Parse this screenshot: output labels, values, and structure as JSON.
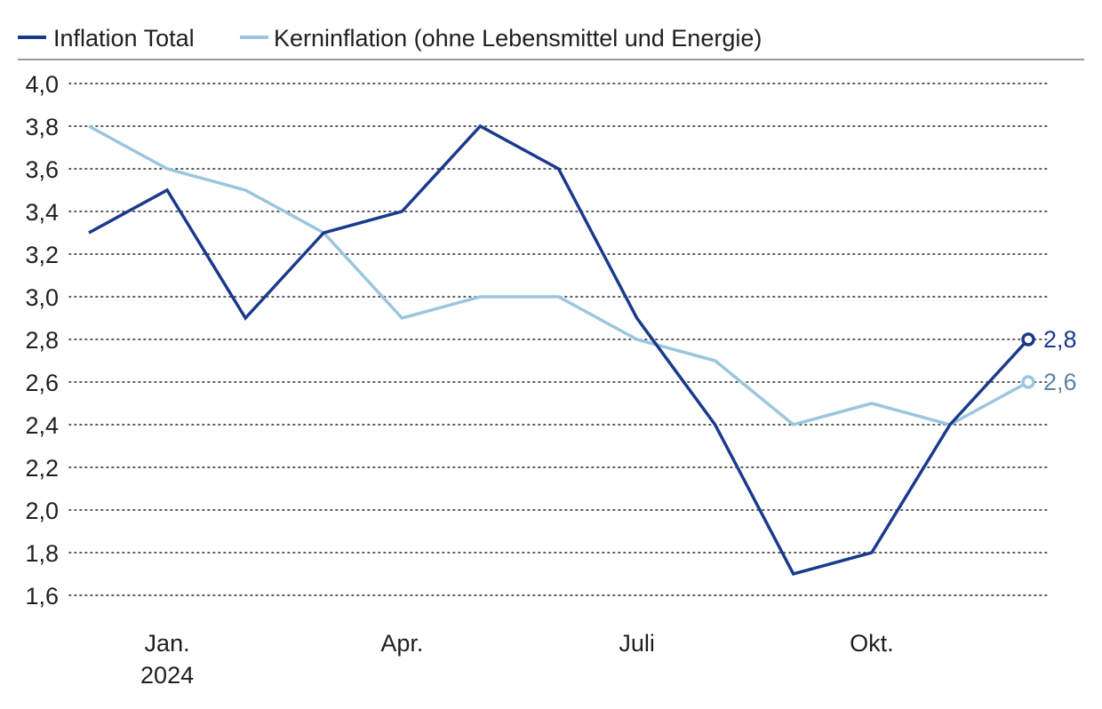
{
  "colors": {
    "series_total": "#1a3a8c",
    "series_core": "#9cc6de",
    "label_total": "#1a3a8c",
    "label_core": "#5b84a8",
    "grid": "#222222",
    "rule": "#9a9a9a",
    "text": "#1f1f1f"
  },
  "chart_data": {
    "type": "line",
    "x": [
      "2023-12",
      "2024-01",
      "2024-02",
      "2024-03",
      "2024-04",
      "2024-05",
      "2024-06",
      "2024-07",
      "2024-08",
      "2024-09",
      "2024-10",
      "2024-11",
      "2024-12"
    ],
    "x_tick_labels": [
      {
        "x": "2024-01",
        "lines": [
          "Jan.",
          "2024"
        ]
      },
      {
        "x": "2024-04",
        "lines": [
          "Apr."
        ]
      },
      {
        "x": "2024-07",
        "lines": [
          "Juli"
        ]
      },
      {
        "x": "2024-10",
        "lines": [
          "Okt."
        ]
      }
    ],
    "series": [
      {
        "name": "Inflation Total",
        "values": [
          3.3,
          3.5,
          2.9,
          3.3,
          3.4,
          3.8,
          3.6,
          2.9,
          2.4,
          1.7,
          1.8,
          2.4,
          2.8
        ],
        "end_label": "2,8"
      },
      {
        "name": "Kerninflation (ohne Lebensmittel und Energie)",
        "values": [
          3.8,
          3.6,
          3.5,
          3.3,
          2.9,
          3.0,
          3.0,
          2.8,
          2.7,
          2.4,
          2.5,
          2.4,
          2.6
        ],
        "end_label": "2,6"
      }
    ],
    "ylim": [
      1.6,
      4.0
    ],
    "y_ticks": [
      "4,0",
      "3,8",
      "3,6",
      "3,4",
      "3,2",
      "3,0",
      "2,8",
      "2,6",
      "2,4",
      "2,2",
      "2,0",
      "1,8",
      "1,6"
    ],
    "grid": true,
    "legend_position": "top-left",
    "title": "",
    "xlabel": "",
    "ylabel": ""
  }
}
